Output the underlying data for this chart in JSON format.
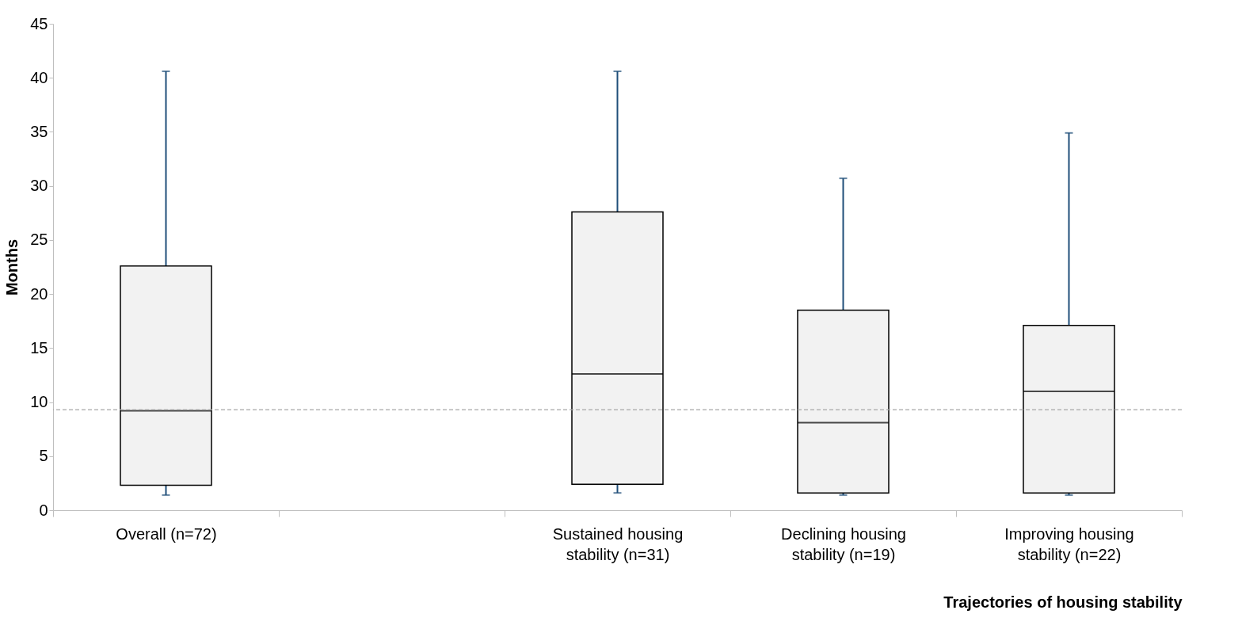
{
  "chart_data": {
    "type": "box",
    "xlabel": "Trajectories of housing stability",
    "ylabel": "Months",
    "categories": [
      "Overall (n=72)",
      null,
      "Sustained housing stability (n=31)",
      "Declining housing stability (n=19)",
      "Improving housing stability (n=22)"
    ],
    "boxes": [
      {
        "low": 1.4,
        "q1": 2.3,
        "median": 9.2,
        "q3": 22.6,
        "high": 40.6
      },
      null,
      {
        "low": 1.6,
        "q1": 2.4,
        "median": 12.6,
        "q3": 27.6,
        "high": 40.6
      },
      {
        "low": 1.4,
        "q1": 1.6,
        "median": 8.1,
        "q3": 18.5,
        "high": 30.7
      },
      {
        "low": 1.4,
        "q1": 1.6,
        "median": 11.0,
        "q3": 17.1,
        "high": 34.9
      }
    ],
    "ylim": [
      0,
      45
    ],
    "yticks": [
      0,
      5,
      10,
      15,
      20,
      25,
      30,
      35,
      40,
      45
    ],
    "ref_lines": [
      {
        "axis": "y",
        "value": 9.3,
        "color": "#a6a6a6",
        "line_style": "dashed"
      }
    ],
    "grid": false
  }
}
